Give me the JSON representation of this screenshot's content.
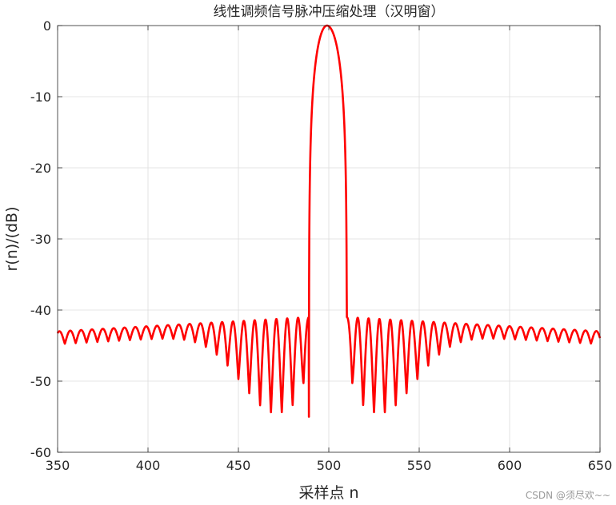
{
  "chart_data": {
    "type": "line",
    "title": "线性调频信号脉冲压缩处理（汉明窗）",
    "xlabel": "采样点 n",
    "ylabel": "r(n)/(dB)",
    "xlim": [
      350,
      650
    ],
    "ylim": [
      -60,
      0
    ],
    "xticks": [
      350,
      400,
      450,
      500,
      550,
      600,
      650
    ],
    "yticks": [
      -60,
      -50,
      -40,
      -30,
      -20,
      -10,
      0
    ],
    "grid": true,
    "series": [
      {
        "color": "#ff0000",
        "peak_x": 499,
        "peak_y": 0,
        "mainlobe_nulls_x": [
          489,
          510
        ],
        "sidelobe_level_near": -41,
        "sidelobe_level_far": -43,
        "sidelobe_minima_deepest": -54.5,
        "sidelobe_period": 6
      }
    ]
  },
  "watermark": "CSDN @须尽欢~~"
}
